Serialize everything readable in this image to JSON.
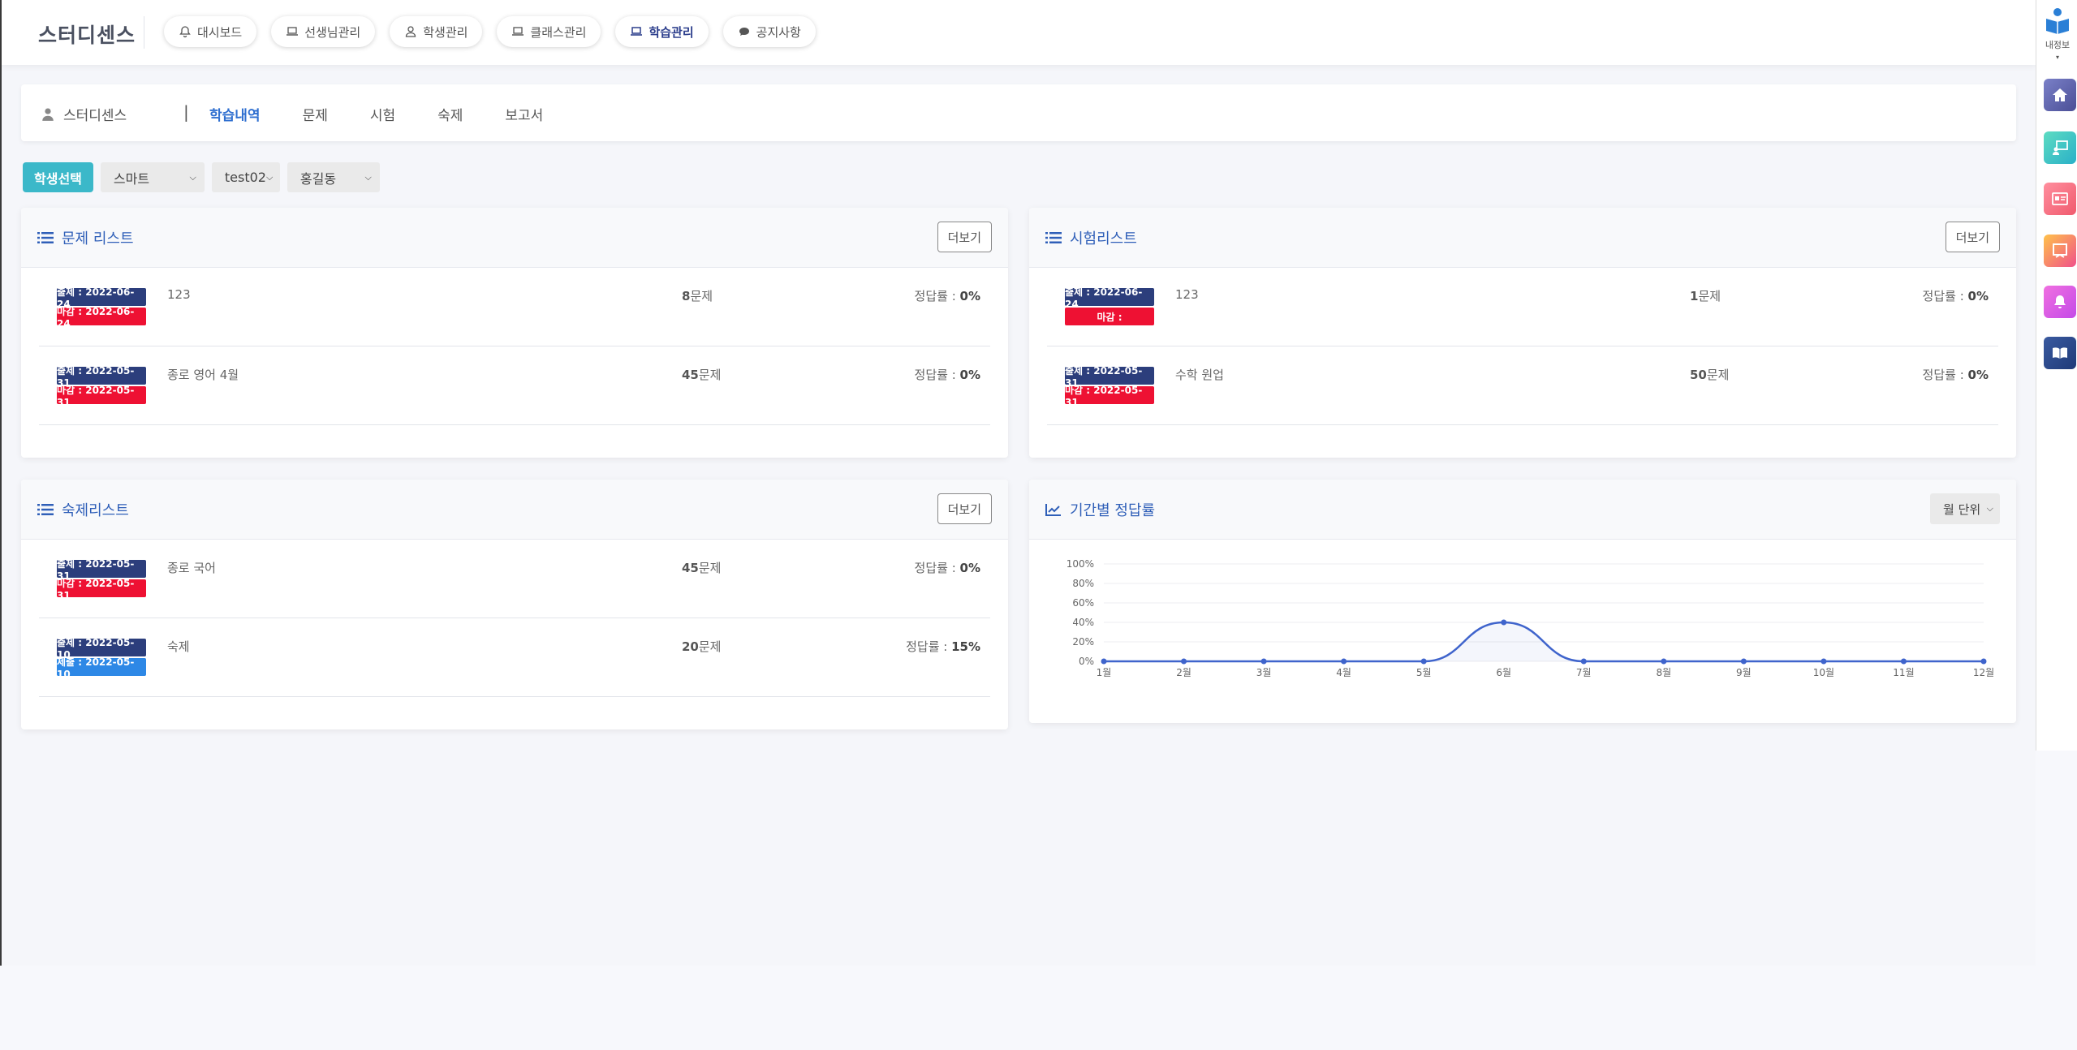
{
  "brand": "스터디센스",
  "nav": [
    {
      "label": "대시보드",
      "icon": "bell-icon",
      "active": false
    },
    {
      "label": "선생님관리",
      "icon": "laptop-icon",
      "active": false
    },
    {
      "label": "학생관리",
      "icon": "user-icon",
      "active": false
    },
    {
      "label": "클래스관리",
      "icon": "laptop-icon",
      "active": false
    },
    {
      "label": "학습관리",
      "icon": "laptop-icon",
      "active": true
    },
    {
      "label": "공지사항",
      "icon": "chat-icon",
      "active": false
    }
  ],
  "subnav": {
    "who": "스터디센스",
    "sep": "|",
    "tabs": [
      "학습내역",
      "문제",
      "시험",
      "숙제",
      "보고서"
    ],
    "active_tab": "학습내역"
  },
  "selector": {
    "button": "학생선택",
    "academy": "스마트",
    "class_id": "test02",
    "student": "홍길동"
  },
  "problems": {
    "title": "문제 리스트",
    "more": "더보기",
    "rows": [
      {
        "badge1": "출제 : 2022-06-24",
        "badge2": "마감 : 2022-06-24",
        "title": "123",
        "count": "8",
        "count_suffix": "문제",
        "rate_label": "정답률 : ",
        "rate": "0%"
      },
      {
        "badge1": "출제 : 2022-05-31",
        "badge2": "마감 : 2022-05-31",
        "title": "종로 영어 4월",
        "count": "45",
        "count_suffix": "문제",
        "rate_label": "정답률 : ",
        "rate": "0%"
      }
    ]
  },
  "exams": {
    "title": "시험리스트",
    "more": "더보기",
    "rows": [
      {
        "badge1": "출제 : 2022-06-24",
        "badge2": "마감 : ",
        "title": "123",
        "count": "1",
        "count_suffix": "문제",
        "rate_label": "정답률 : ",
        "rate": "0%"
      },
      {
        "badge1": "출제 : 2022-05-31",
        "badge2": "마감 : 2022-05-31",
        "title": "수학 원업",
        "count": "50",
        "count_suffix": "문제",
        "rate_label": "정답률 : ",
        "rate": "0%"
      }
    ]
  },
  "homework": {
    "title": "숙제리스트",
    "more": "더보기",
    "rows": [
      {
        "badge1": "출제 : 2022-05-31",
        "badge2": "마감 : 2022-05-31",
        "title": "종로 국어",
        "count": "45",
        "count_suffix": "문제",
        "rate_label": "정답률 : ",
        "rate": "0%"
      },
      {
        "badge1": "출제 : 2022-05-10",
        "badge2": "제출 : 2022-05-10",
        "title": "숙제",
        "count": "20",
        "count_suffix": "문제",
        "rate_label": "정답률 : ",
        "rate": "15%"
      }
    ]
  },
  "period": {
    "title": "기간별 정답률",
    "unit": "월 단위"
  },
  "rail": {
    "label": "내정보",
    "icons": [
      {
        "name": "home-icon",
        "color": "#5a62a8"
      },
      {
        "name": "teacher-icon",
        "color": "#3bc3b4"
      },
      {
        "name": "id-card-icon",
        "color": "#f07a8a"
      },
      {
        "name": "board-icon",
        "color": "#f39a3a"
      },
      {
        "name": "bell-icon",
        "color": "#d85ad8"
      },
      {
        "name": "book-icon",
        "color": "#2f4f8c"
      }
    ]
  },
  "chart_data": {
    "type": "area",
    "categories": [
      "1월",
      "2월",
      "3월",
      "4월",
      "5월",
      "6월",
      "7월",
      "8월",
      "9월",
      "10월",
      "11월",
      "12월"
    ],
    "values": [
      0,
      0,
      0,
      0,
      0,
      40,
      0,
      0,
      0,
      0,
      0,
      0
    ],
    "yticks": [
      "0%",
      "20%",
      "40%",
      "60%",
      "80%",
      "100%"
    ],
    "ylim": [
      0,
      100
    ],
    "color": "#3f64cc",
    "grid": true
  }
}
